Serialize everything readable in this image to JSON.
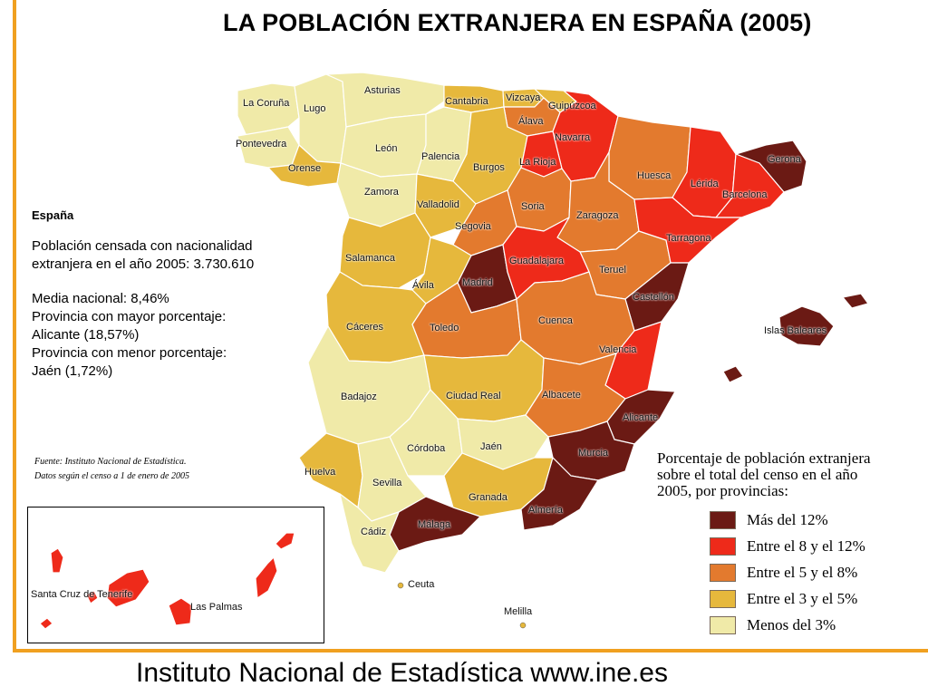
{
  "title": "LA POBLACIÓN EXTRANJERA EN ESPAÑA (2005)",
  "colors": {
    "frame": "#f0a020",
    "cat1": "#6b1a14",
    "cat2": "#ee2a1a",
    "cat3": "#e37a2e",
    "cat4": "#e6b83c",
    "cat5": "#f0eaa8",
    "sea": "#ffffff"
  },
  "info": {
    "heading": "España",
    "population_line1": "Población censada con nacionalidad",
    "population_line2": "extranjera en el año 2005: 3.730.610",
    "media": "Media nacional: 8,46%",
    "max_label": "Provincia con mayor porcentaje:",
    "max_value": "Alicante (18,57%)",
    "min_label": "Provincia con menor porcentaje:",
    "min_value": "Jaén (1,72%)"
  },
  "source": {
    "line1": "Fuente: Instituto Nacional de Estadística.",
    "line2": "Datos según el censo a 1 de enero de 2005"
  },
  "legend": {
    "title_line1": "Porcentaje de población extranjera",
    "title_line2": "sobre el total del censo en el año",
    "title_line3": "2005, por provincias:",
    "items": [
      {
        "label": "Más del 12%",
        "color": "#6b1a14"
      },
      {
        "label": "Entre el 8 y el 12%",
        "color": "#ee2a1a"
      },
      {
        "label": "Entre el 5 y el 8%",
        "color": "#e37a2e"
      },
      {
        "label": "Entre el 3 y el 5%",
        "color": "#e6b83c"
      },
      {
        "label": "Menos del 3%",
        "color": "#f0eaa8"
      }
    ]
  },
  "provinces": [
    {
      "name": "La Coruña",
      "category": 5
    },
    {
      "name": "Lugo",
      "category": 5
    },
    {
      "name": "Asturias",
      "category": 5
    },
    {
      "name": "Cantabria",
      "category": 4
    },
    {
      "name": "Vizcaya",
      "category": 4
    },
    {
      "name": "Guipúzcoa",
      "category": 4
    },
    {
      "name": "Álava",
      "category": 3
    },
    {
      "name": "Navarra",
      "category": 2
    },
    {
      "name": "Pontevedra",
      "category": 5
    },
    {
      "name": "Orense",
      "category": 4
    },
    {
      "name": "León",
      "category": 5
    },
    {
      "name": "Palencia",
      "category": 5
    },
    {
      "name": "Burgos",
      "category": 4
    },
    {
      "name": "La Rioja",
      "category": 2
    },
    {
      "name": "Huesca",
      "category": 3
    },
    {
      "name": "Lérida",
      "category": 2
    },
    {
      "name": "Gerona",
      "category": 1
    },
    {
      "name": "Barcelona",
      "category": 2
    },
    {
      "name": "Zamora",
      "category": 5
    },
    {
      "name": "Valladolid",
      "category": 4
    },
    {
      "name": "Soria",
      "category": 3
    },
    {
      "name": "Zaragoza",
      "category": 3
    },
    {
      "name": "Segovia",
      "category": 3
    },
    {
      "name": "Tarragona",
      "category": 2
    },
    {
      "name": "Salamanca",
      "category": 4
    },
    {
      "name": "Guadalajara",
      "category": 2
    },
    {
      "name": "Teruel",
      "category": 3
    },
    {
      "name": "Madrid",
      "category": 1
    },
    {
      "name": "Ávila",
      "category": 4
    },
    {
      "name": "Castellón",
      "category": 1
    },
    {
      "name": "Cáceres",
      "category": 4
    },
    {
      "name": "Toledo",
      "category": 3
    },
    {
      "name": "Cuenca",
      "category": 3
    },
    {
      "name": "Valencia",
      "category": 2
    },
    {
      "name": "Islas Baleares",
      "category": 1
    },
    {
      "name": "Badajoz",
      "category": 5
    },
    {
      "name": "Ciudad Real",
      "category": 4
    },
    {
      "name": "Albacete",
      "category": 3
    },
    {
      "name": "Alicante",
      "category": 1
    },
    {
      "name": "Córdoba",
      "category": 5
    },
    {
      "name": "Jaén",
      "category": 5
    },
    {
      "name": "Murcia",
      "category": 1
    },
    {
      "name": "Huelva",
      "category": 4
    },
    {
      "name": "Sevilla",
      "category": 5
    },
    {
      "name": "Granada",
      "category": 4
    },
    {
      "name": "Almería",
      "category": 1
    },
    {
      "name": "Málaga",
      "category": 1
    },
    {
      "name": "Cádiz",
      "category": 5
    },
    {
      "name": "Ceuta",
      "category": null
    },
    {
      "name": "Melilla",
      "category": null
    },
    {
      "name": "Santa Cruz de Tenerife",
      "category": 2
    },
    {
      "name": "Las Palmas",
      "category": 2
    }
  ],
  "footer": "Instituto Nacional de Estadística www.ine.es"
}
